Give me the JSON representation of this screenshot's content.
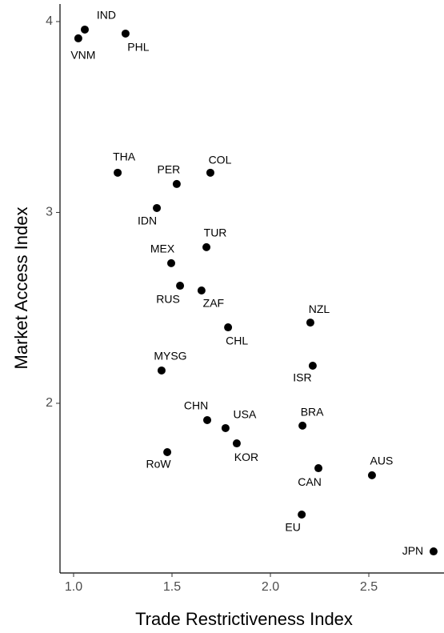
{
  "chart_data": {
    "type": "scatter",
    "x_label": "Trade Restrictiveness Index",
    "y_label": "Market Access Index",
    "labels": [
      "VNM",
      "IND",
      "PHL",
      "THA",
      "PER",
      "COL",
      "IDN",
      "TUR",
      "MEX",
      "RUS",
      "ZAF",
      "CHL",
      "NZL",
      "ISR",
      "MYSG",
      "CHN",
      "USA",
      "BRA",
      "KOR",
      "RoW",
      "CAN",
      "AUS",
      "EU",
      "JPN"
    ],
    "x": [
      1.024,
      1.057,
      1.264,
      1.224,
      1.524,
      1.695,
      1.423,
      1.675,
      1.496,
      1.541,
      1.65,
      1.785,
      2.203,
      2.215,
      1.447,
      1.679,
      1.772,
      2.163,
      1.829,
      1.476,
      2.244,
      2.516,
      2.159,
      2.829
    ],
    "y": [
      3.912,
      3.958,
      3.937,
      3.208,
      3.149,
      3.208,
      3.023,
      2.818,
      2.734,
      2.616,
      2.591,
      2.398,
      2.423,
      2.197,
      2.172,
      1.912,
      1.87,
      1.883,
      1.79,
      1.744,
      1.66,
      1.623,
      1.417,
      1.224
    ],
    "color": "#000000",
    "xlim": [
      0.931,
      2.882
    ],
    "ylim": [
      1.111,
      4.092
    ],
    "xticks": [
      {
        "value": 1,
        "label": "1.0"
      },
      {
        "value": 1.5,
        "label": "1.5"
      },
      {
        "value": 2,
        "label": "2.0"
      },
      {
        "value": 2.5,
        "label": "2.5"
      }
    ],
    "yticks": [
      2,
      3,
      4
    ]
  }
}
